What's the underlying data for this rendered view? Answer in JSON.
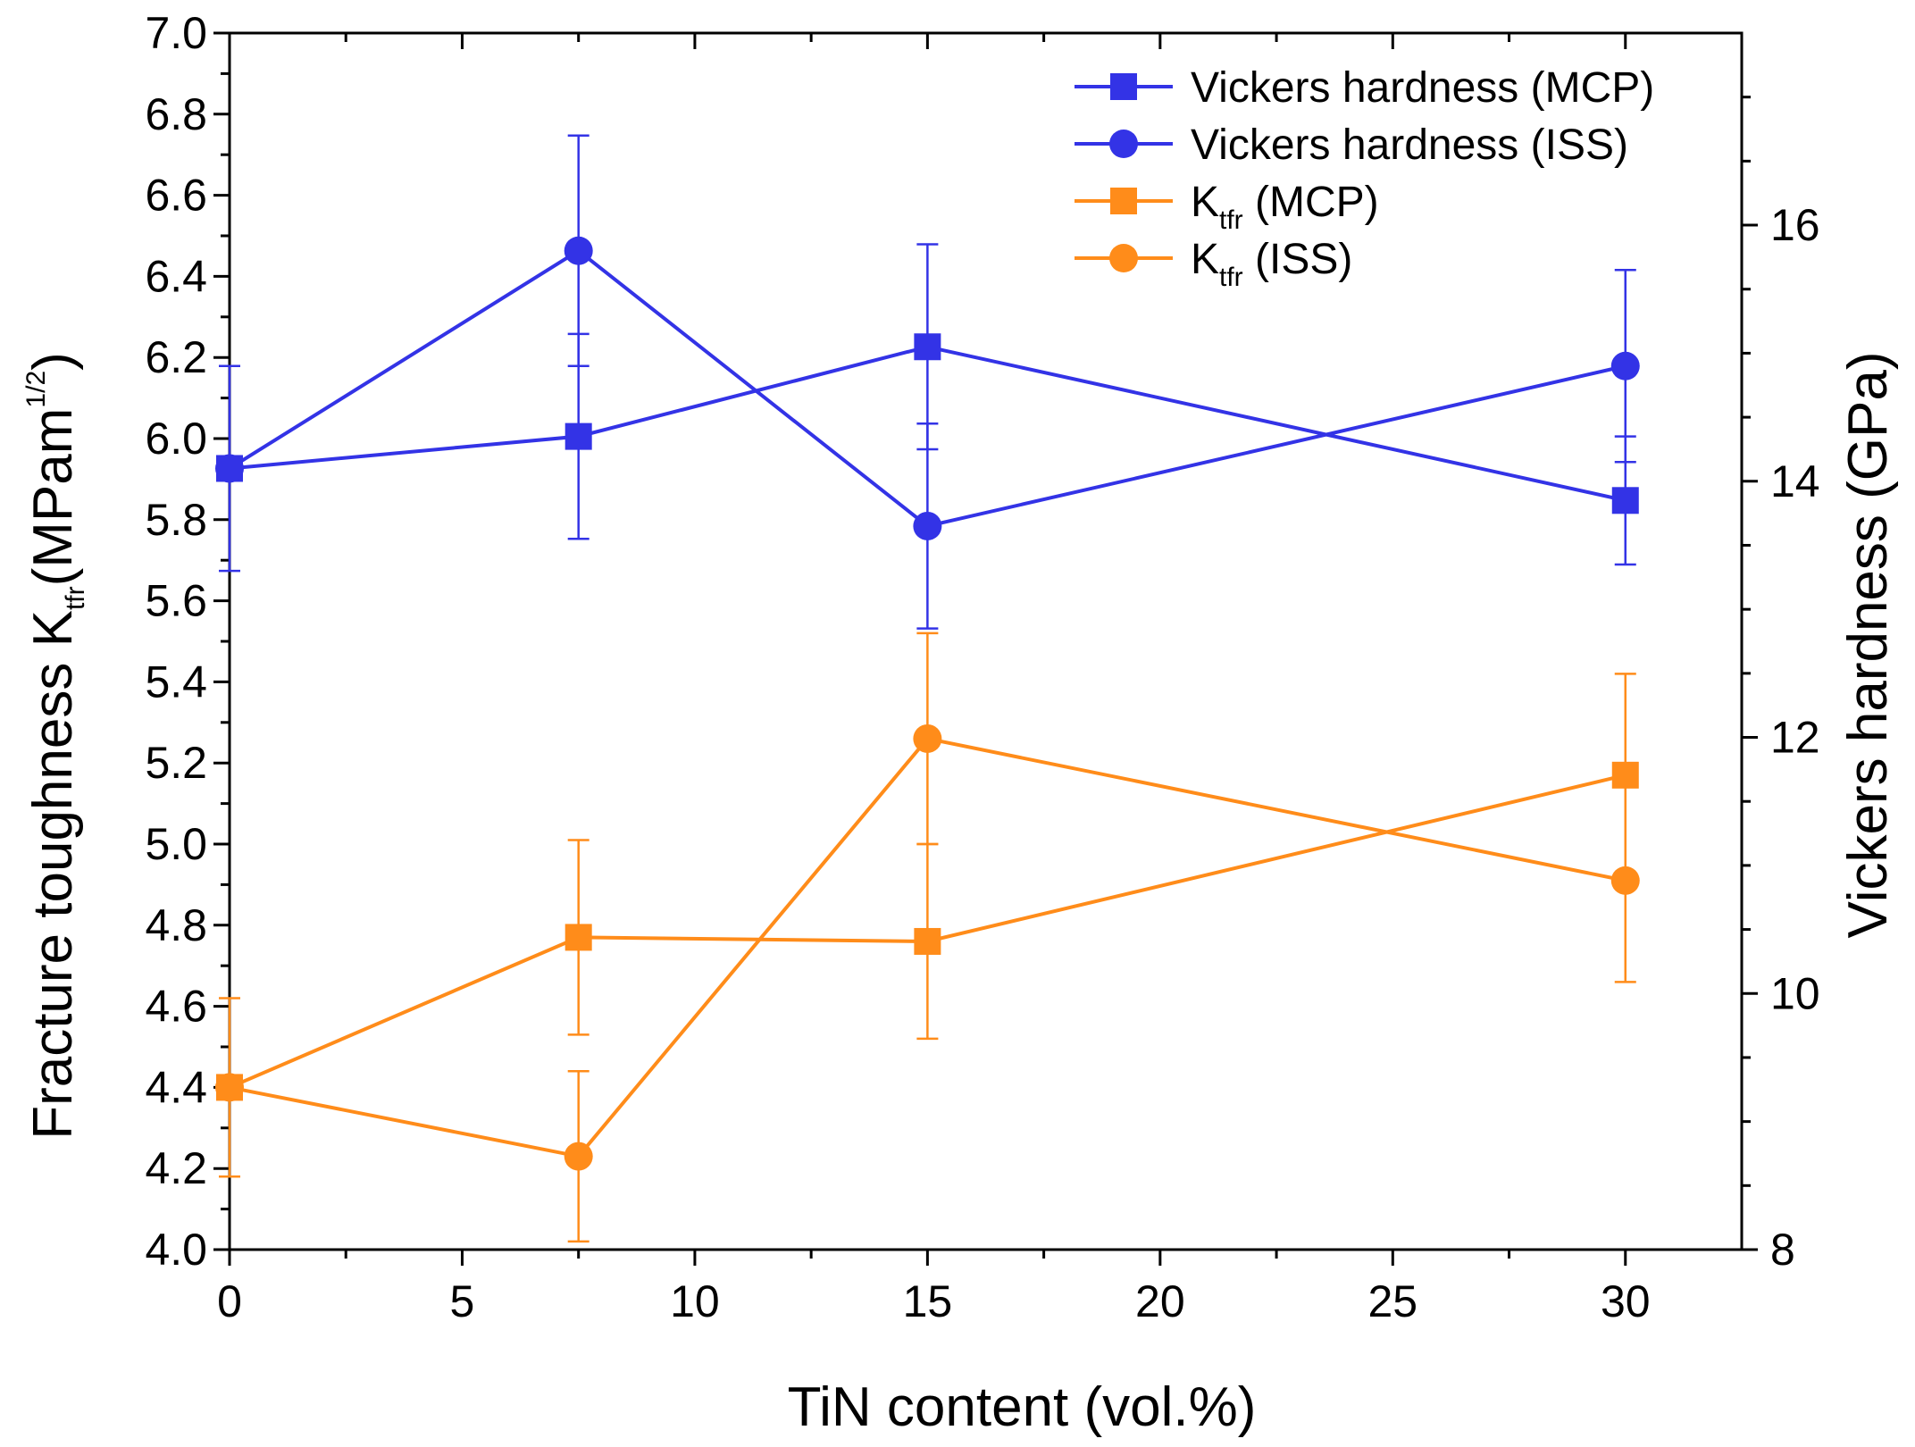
{
  "chart_data": {
    "type": "line",
    "xlabel": "TiN content (vol.%)",
    "ylabel_left": {
      "text": "Fracture toughness K",
      "sub": "tfr",
      "unit_prefix": "(MPam",
      "sup": "1/2",
      "unit_suffix": ")"
    },
    "ylabel_right": "Vickers hardness (GPa)",
    "xlim": [
      0,
      32.5
    ],
    "ylim_left": [
      4.0,
      7.0
    ],
    "ylim_right": [
      8,
      17.5
    ],
    "x_ticks": [
      "0",
      "5",
      "10",
      "15",
      "20",
      "25",
      "30"
    ],
    "y_left_ticks": [
      "4.0",
      "4.2",
      "4.4",
      "4.6",
      "4.8",
      "5.0",
      "5.2",
      "5.4",
      "5.6",
      "5.8",
      "6.0",
      "6.2",
      "6.4",
      "6.6",
      "6.8",
      "7.0"
    ],
    "y_right_ticks": [
      "8",
      "10",
      "12",
      "14",
      "16"
    ],
    "grid": false,
    "legend_position": "top-right",
    "series": [
      {
        "name": "Vickers hardness (MCP)",
        "legend_main": "Vickers hardness (MCP)",
        "legend_sub": "",
        "legend_rest": "",
        "axis": "right",
        "marker": "square",
        "color": "#3333e6",
        "x": [
          0,
          7.5,
          15,
          30
        ],
        "y": [
          14.1,
          14.35,
          15.05,
          13.85
        ],
        "err": [
          0.8,
          0.8,
          0.8,
          0.5
        ]
      },
      {
        "name": "Vickers hardness (ISS)",
        "legend_main": "Vickers hardness (ISS)",
        "legend_sub": "",
        "legend_rest": "",
        "axis": "right",
        "marker": "circle",
        "color": "#3333e6",
        "x": [
          0,
          7.5,
          15,
          30
        ],
        "y": [
          14.1,
          15.8,
          13.65,
          14.9
        ],
        "err": [
          0.0,
          0.9,
          0.8,
          0.75
        ]
      },
      {
        "name": "Ktfr (MCP)",
        "legend_main": "K",
        "legend_sub": "tfr",
        "legend_rest": " (MCP)",
        "axis": "left",
        "marker": "square",
        "color": "#ff8c1a",
        "x": [
          0,
          7.5,
          15,
          30
        ],
        "y": [
          4.4,
          4.77,
          4.76,
          5.17
        ],
        "err": [
          0.22,
          0.24,
          0.24,
          0.25
        ]
      },
      {
        "name": "Ktfr (ISS)",
        "legend_main": "K",
        "legend_sub": "tfr",
        "legend_rest": " (ISS)",
        "axis": "left",
        "marker": "circle",
        "color": "#ff8c1a",
        "x": [
          0,
          7.5,
          15,
          30
        ],
        "y": [
          4.4,
          4.23,
          5.26,
          4.91
        ],
        "err": [
          0.0,
          0.21,
          0.26,
          0.25
        ]
      }
    ]
  }
}
